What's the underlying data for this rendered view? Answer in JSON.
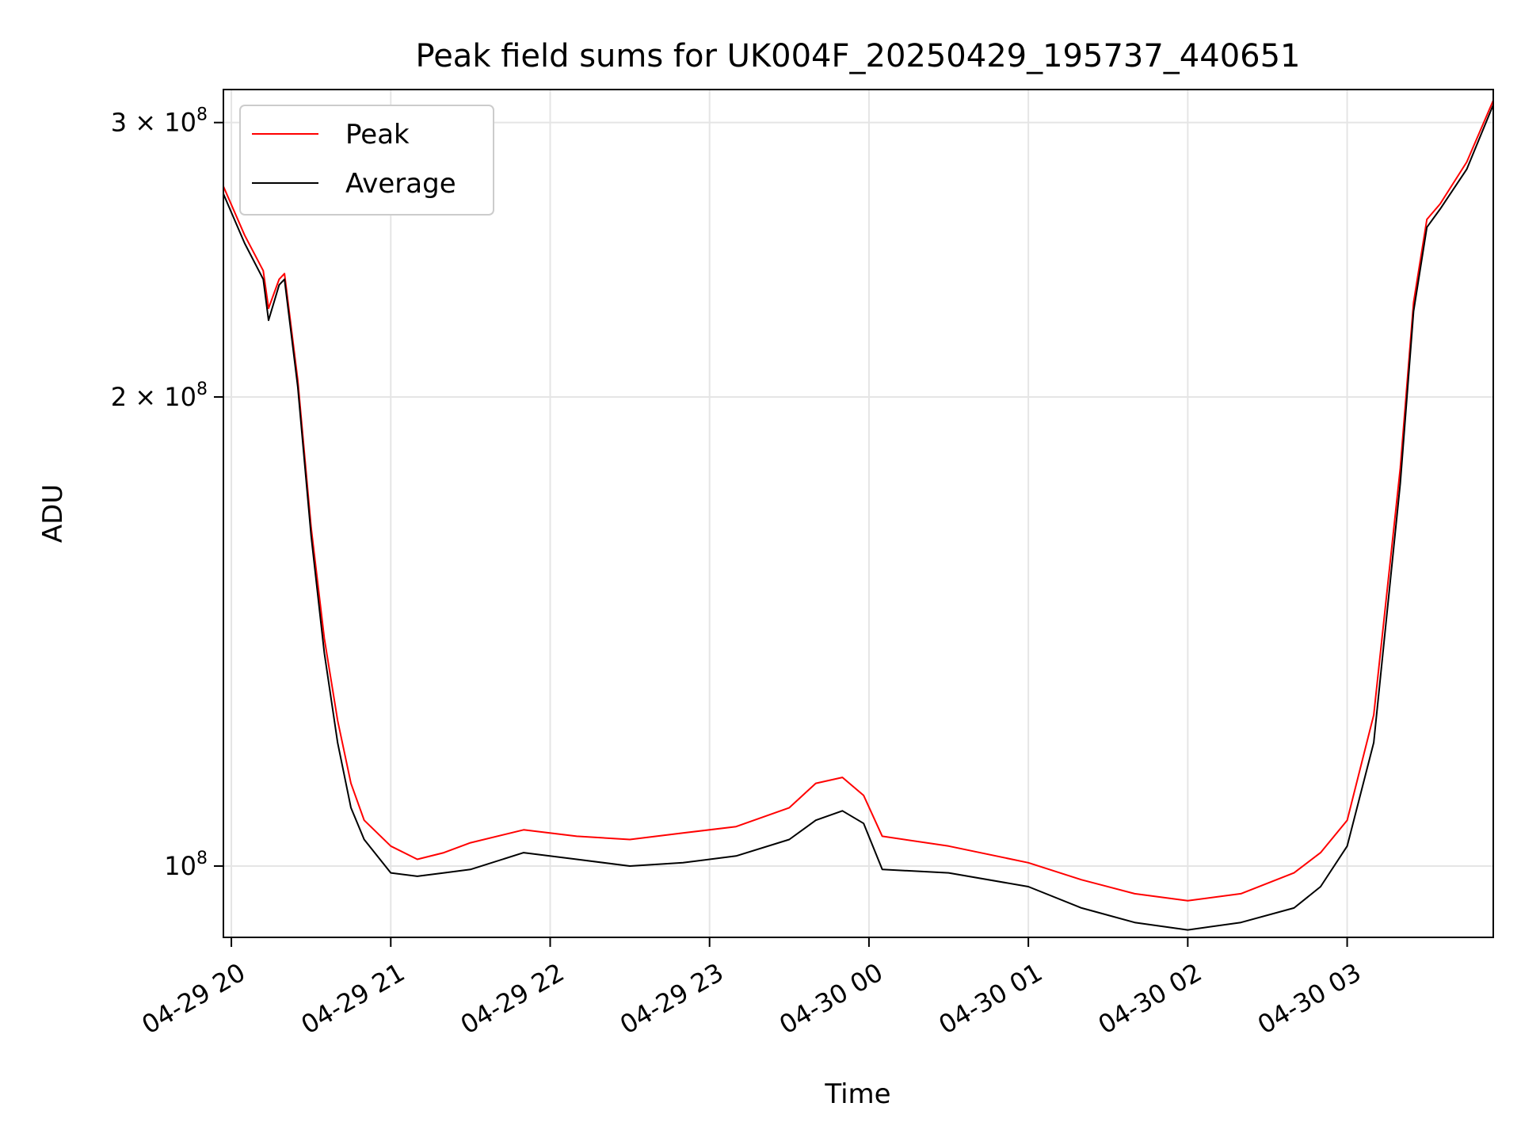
{
  "chart_data": {
    "type": "line",
    "title": "Peak field sums for UK004F_20250429_195737_440651",
    "xlabel": "Time",
    "ylabel": "ADU",
    "y_scale": "log",
    "grid": true,
    "legend_position": "top-left",
    "xlim": [
      "2025-04-29 19:57",
      "2025-04-30 03:55"
    ],
    "ylim": [
      90000000,
      315000000
    ],
    "x_ticks": [
      {
        "value": "2025-04-29 20:00",
        "label": "04-29 20"
      },
      {
        "value": "2025-04-29 21:00",
        "label": "04-29 21"
      },
      {
        "value": "2025-04-29 22:00",
        "label": "04-29 22"
      },
      {
        "value": "2025-04-29 23:00",
        "label": "04-29 23"
      },
      {
        "value": "2025-04-30 00:00",
        "label": "04-30 00"
      },
      {
        "value": "2025-04-30 01:00",
        "label": "04-30 01"
      },
      {
        "value": "2025-04-30 02:00",
        "label": "04-30 02"
      },
      {
        "value": "2025-04-30 03:00",
        "label": "04-30 03"
      }
    ],
    "y_ticks": [
      {
        "value": 100000000,
        "base": "10",
        "exp": "8",
        "mantissa": ""
      },
      {
        "value": 200000000,
        "base": "10",
        "exp": "8",
        "mantissa": "2 × "
      },
      {
        "value": 300000000,
        "base": "10",
        "exp": "8",
        "mantissa": "3 × "
      }
    ],
    "series": [
      {
        "name": "Peak",
        "color": "#ff0000",
        "x": [
          "2025-04-29 19:57",
          "2025-04-29 20:05",
          "2025-04-29 20:12",
          "2025-04-29 20:14",
          "2025-04-29 20:18",
          "2025-04-29 20:20",
          "2025-04-29 20:25",
          "2025-04-29 20:30",
          "2025-04-29 20:35",
          "2025-04-29 20:40",
          "2025-04-29 20:45",
          "2025-04-29 20:50",
          "2025-04-29 21:00",
          "2025-04-29 21:10",
          "2025-04-29 21:20",
          "2025-04-29 21:30",
          "2025-04-29 21:50",
          "2025-04-29 22:10",
          "2025-04-29 22:30",
          "2025-04-29 22:50",
          "2025-04-29 23:10",
          "2025-04-29 23:30",
          "2025-04-29 23:40",
          "2025-04-29 23:50",
          "2025-04-29 23:58",
          "2025-04-30 00:05",
          "2025-04-30 00:30",
          "2025-04-30 01:00",
          "2025-04-30 01:20",
          "2025-04-30 01:40",
          "2025-04-30 02:00",
          "2025-04-30 02:20",
          "2025-04-30 02:40",
          "2025-04-30 02:50",
          "2025-04-30 03:00",
          "2025-04-30 03:10",
          "2025-04-30 03:20",
          "2025-04-30 03:25",
          "2025-04-30 03:30",
          "2025-04-30 03:35",
          "2025-04-30 03:45",
          "2025-04-30 03:55"
        ],
        "values": [
          273000000,
          254000000,
          241000000,
          228000000,
          238000000,
          240000000,
          205000000,
          165000000,
          140000000,
          124000000,
          113000000,
          107000000,
          103000000,
          101000000,
          102000000,
          103500000,
          105500000,
          104500000,
          104000000,
          105000000,
          106000000,
          109000000,
          113000000,
          114000000,
          111000000,
          104500000,
          103000000,
          100500000,
          98000000,
          96000000,
          95000000,
          96000000,
          99000000,
          102000000,
          107000000,
          125000000,
          180000000,
          230000000,
          260000000,
          266000000,
          283000000,
          310000000
        ]
      },
      {
        "name": "Average",
        "color": "#000000",
        "x": [
          "2025-04-29 19:57",
          "2025-04-29 20:05",
          "2025-04-29 20:12",
          "2025-04-29 20:14",
          "2025-04-29 20:18",
          "2025-04-29 20:20",
          "2025-04-29 20:25",
          "2025-04-29 20:30",
          "2025-04-29 20:35",
          "2025-04-29 20:40",
          "2025-04-29 20:45",
          "2025-04-29 20:50",
          "2025-04-29 21:00",
          "2025-04-29 21:10",
          "2025-04-29 21:20",
          "2025-04-29 21:30",
          "2025-04-29 21:50",
          "2025-04-29 22:10",
          "2025-04-29 22:30",
          "2025-04-29 22:50",
          "2025-04-29 23:10",
          "2025-04-29 23:30",
          "2025-04-29 23:40",
          "2025-04-29 23:50",
          "2025-04-29 23:58",
          "2025-04-30 00:05",
          "2025-04-30 00:30",
          "2025-04-30 01:00",
          "2025-04-30 01:20",
          "2025-04-30 01:40",
          "2025-04-30 02:00",
          "2025-04-30 02:20",
          "2025-04-30 02:40",
          "2025-04-30 02:50",
          "2025-04-30 03:00",
          "2025-04-30 03:10",
          "2025-04-30 03:20",
          "2025-04-30 03:25",
          "2025-04-30 03:30",
          "2025-04-30 03:35",
          "2025-04-30 03:45",
          "2025-04-30 03:55"
        ],
        "values": [
          270000000,
          251000000,
          238000000,
          224000000,
          236000000,
          238000000,
          203000000,
          163000000,
          137000000,
          120000000,
          109000000,
          104000000,
          99000000,
          98500000,
          99000000,
          99500000,
          102000000,
          101000000,
          100000000,
          100500000,
          101500000,
          104000000,
          107000000,
          108500000,
          106500000,
          99500000,
          99000000,
          97000000,
          94000000,
          92000000,
          91000000,
          92000000,
          94000000,
          97000000,
          103000000,
          120000000,
          176000000,
          227000000,
          257000000,
          264000000,
          280000000,
          308000000
        ]
      }
    ]
  }
}
